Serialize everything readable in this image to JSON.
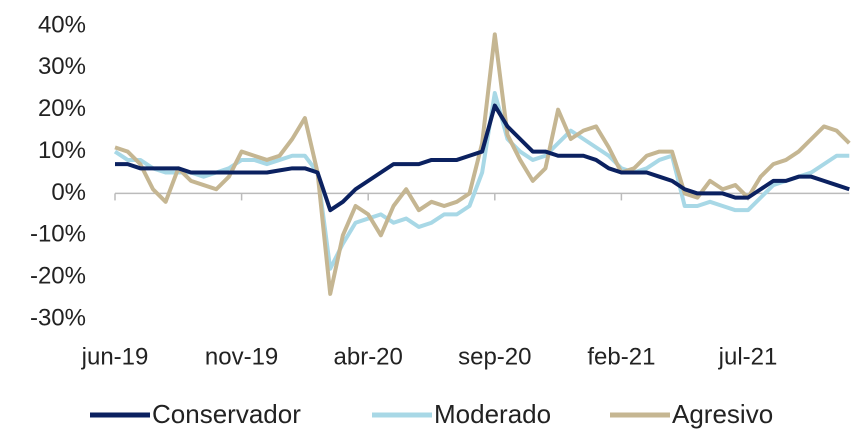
{
  "chart_data": {
    "type": "line",
    "categories": [
      "jun-19",
      null,
      null,
      null,
      null,
      null,
      null,
      null,
      null,
      null,
      "nov-19",
      null,
      null,
      null,
      null,
      null,
      null,
      null,
      null,
      null,
      "abr-20",
      null,
      null,
      null,
      null,
      null,
      null,
      null,
      null,
      null,
      "sep-20",
      null,
      null,
      null,
      null,
      null,
      null,
      null,
      null,
      null,
      "feb-21",
      null,
      null,
      null,
      null,
      null,
      null,
      null,
      null,
      null,
      "jul-21",
      null,
      null,
      null,
      null,
      null,
      null,
      null,
      null
    ],
    "series": [
      {
        "name": "Conservador",
        "color": "#0b2160",
        "values": [
          7,
          7,
          6,
          6,
          6,
          6,
          5,
          5,
          5,
          5,
          5,
          5,
          5,
          5.5,
          6,
          6,
          5,
          -4,
          -2,
          1,
          3,
          5,
          7,
          7,
          7,
          8,
          8,
          8,
          9,
          10,
          21,
          16,
          13,
          10,
          10,
          9,
          9,
          9,
          8,
          6,
          5,
          5,
          5,
          4,
          3,
          1,
          0,
          0,
          0,
          -1,
          -1,
          1,
          3,
          3,
          4,
          4,
          3,
          2,
          1
        ]
      },
      {
        "name": "Moderado",
        "color": "#a8d8e6",
        "values": [
          10,
          8,
          8,
          6,
          5,
          5,
          5,
          4,
          5,
          6,
          8,
          8,
          7,
          8,
          9,
          9,
          5,
          -18,
          -12,
          -7,
          -6,
          -5,
          -7,
          -6,
          -8,
          -7,
          -5,
          -5,
          -3,
          5,
          24,
          13,
          10,
          8,
          9,
          12,
          15,
          13,
          11,
          9,
          6,
          5,
          6,
          8,
          9,
          -3,
          -3,
          -2,
          -3,
          -4,
          -4,
          -1,
          2,
          3,
          4,
          5,
          7,
          9,
          9
        ]
      },
      {
        "name": "Agresivo",
        "color": "#c5b692",
        "values": [
          11,
          10,
          7,
          1,
          -2,
          6,
          3,
          2,
          1,
          4,
          10,
          9,
          8,
          9,
          13,
          18,
          5,
          -24,
          -10,
          -3,
          -5,
          -10,
          -3,
          1,
          -4,
          -2,
          -3,
          -2,
          0,
          12,
          38,
          14,
          8,
          3,
          6,
          20,
          13,
          15,
          16,
          11,
          5,
          6,
          9,
          10,
          10,
          0,
          -1,
          3,
          1,
          2,
          -1,
          4,
          7,
          8,
          10,
          13,
          16,
          15,
          12
        ]
      }
    ],
    "ylim": [
      -30,
      40
    ],
    "yticks": [
      {
        "value": -30,
        "label": "-30%"
      },
      {
        "value": -20,
        "label": "-20%"
      },
      {
        "value": -10,
        "label": "-10%"
      },
      {
        "value": 0,
        "label": "0%"
      },
      {
        "value": 10,
        "label": "10%"
      },
      {
        "value": 20,
        "label": "20%"
      },
      {
        "value": 30,
        "label": "30%"
      },
      {
        "value": 40,
        "label": "40%"
      }
    ],
    "grid": false,
    "legend": "bottom"
  }
}
